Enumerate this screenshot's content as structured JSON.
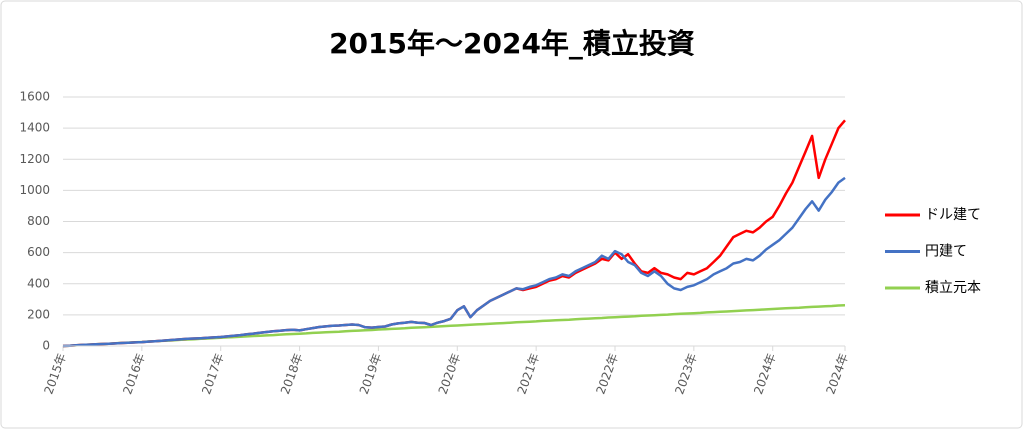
{
  "chart_data": {
    "type": "line",
    "title": "2015年～2024年_積立投資",
    "categories": [
      "2015年",
      null,
      null,
      null,
      null,
      null,
      null,
      null,
      null,
      null,
      null,
      null,
      "2016年",
      null,
      null,
      null,
      null,
      null,
      null,
      null,
      null,
      null,
      null,
      null,
      "2017年",
      null,
      null,
      null,
      null,
      null,
      null,
      null,
      null,
      null,
      null,
      null,
      "2018年",
      null,
      null,
      null,
      null,
      null,
      null,
      null,
      null,
      null,
      null,
      null,
      "2019年",
      null,
      null,
      null,
      null,
      null,
      null,
      null,
      null,
      null,
      null,
      null,
      "2020年",
      null,
      null,
      null,
      null,
      null,
      null,
      null,
      null,
      null,
      null,
      null,
      "2021年",
      null,
      null,
      null,
      null,
      null,
      null,
      null,
      null,
      null,
      null,
      null,
      "2022年",
      null,
      null,
      null,
      null,
      null,
      null,
      null,
      null,
      null,
      null,
      null,
      "2023年",
      null,
      null,
      null,
      null,
      null,
      null,
      null,
      null,
      null,
      null,
      null,
      "2024年",
      null,
      null,
      null,
      null,
      null,
      null,
      null,
      null,
      null,
      null,
      "2024年"
    ],
    "series": [
      {
        "name": "ドル建て",
        "color": "#ff0000",
        "values": [
          0,
          2,
          5,
          7,
          9,
          11,
          13,
          15,
          17,
          19,
          21,
          23,
          25,
          28,
          31,
          34,
          37,
          40,
          43,
          46,
          48,
          50,
          53,
          55,
          58,
          62,
          66,
          70,
          75,
          80,
          85,
          90,
          95,
          98,
          102,
          105,
          100,
          108,
          115,
          122,
          126,
          130,
          132,
          135,
          138,
          135,
          120,
          118,
          122,
          125,
          138,
          145,
          150,
          155,
          150,
          148,
          135,
          150,
          160,
          175,
          230,
          255,
          185,
          230,
          260,
          290,
          310,
          330,
          350,
          370,
          360,
          370,
          380,
          400,
          420,
          430,
          450,
          440,
          470,
          490,
          510,
          530,
          560,
          550,
          600,
          560,
          590,
          530,
          480,
          470,
          500,
          470,
          460,
          440,
          430,
          470,
          460,
          480,
          500,
          540,
          580,
          640,
          700,
          720,
          740,
          730,
          760,
          800,
          830,
          900,
          980,
          1050,
          1150,
          1250,
          1350,
          1080,
          1200,
          1300,
          1400,
          1450
        ]
      },
      {
        "name": "円建て",
        "color": "#4472c4",
        "values": [
          0,
          2,
          5,
          7,
          9,
          11,
          13,
          15,
          17,
          19,
          21,
          23,
          25,
          28,
          31,
          34,
          37,
          40,
          43,
          46,
          48,
          50,
          53,
          55,
          58,
          62,
          66,
          70,
          75,
          80,
          85,
          90,
          95,
          98,
          102,
          105,
          100,
          108,
          115,
          122,
          126,
          130,
          132,
          135,
          138,
          135,
          120,
          118,
          122,
          125,
          138,
          145,
          150,
          155,
          150,
          148,
          135,
          150,
          160,
          175,
          230,
          255,
          185,
          230,
          260,
          290,
          310,
          330,
          350,
          370,
          365,
          380,
          390,
          410,
          430,
          440,
          460,
          450,
          480,
          500,
          520,
          540,
          580,
          560,
          610,
          590,
          540,
          520,
          470,
          450,
          480,
          450,
          400,
          370,
          360,
          380,
          390,
          410,
          430,
          460,
          480,
          500,
          530,
          540,
          560,
          550,
          580,
          620,
          650,
          680,
          720,
          760,
          820,
          880,
          930,
          870,
          940,
          990,
          1050,
          1080
        ]
      },
      {
        "name": "積立元本",
        "color": "#92d050",
        "values": [
          0,
          2,
          4,
          7,
          9,
          11,
          13,
          15,
          18,
          20,
          22,
          24,
          26,
          29,
          31,
          33,
          35,
          37,
          40,
          42,
          44,
          46,
          48,
          51,
          53,
          55,
          57,
          59,
          62,
          64,
          66,
          68,
          70,
          73,
          75,
          77,
          79,
          81,
          84,
          86,
          88,
          90,
          92,
          95,
          97,
          99,
          101,
          103,
          106,
          108,
          110,
          112,
          114,
          117,
          119,
          121,
          123,
          125,
          128,
          130,
          132,
          134,
          136,
          139,
          141,
          143,
          145,
          147,
          150,
          152,
          154,
          156,
          158,
          161,
          163,
          165,
          167,
          169,
          172,
          174,
          176,
          178,
          180,
          183,
          185,
          187,
          189,
          191,
          194,
          196,
          198,
          200,
          202,
          205,
          207,
          209,
          211,
          213,
          216,
          218,
          220,
          222,
          224,
          227,
          229,
          231,
          233,
          235,
          238,
          240,
          242,
          244,
          246,
          249,
          251,
          253,
          255,
          257,
          260,
          262
        ]
      }
    ],
    "ylim": [
      0,
      1600
    ],
    "yticks": [
      0,
      200,
      400,
      600,
      800,
      1000,
      1200,
      1400,
      1600
    ],
    "grid": true,
    "legend": "right"
  }
}
